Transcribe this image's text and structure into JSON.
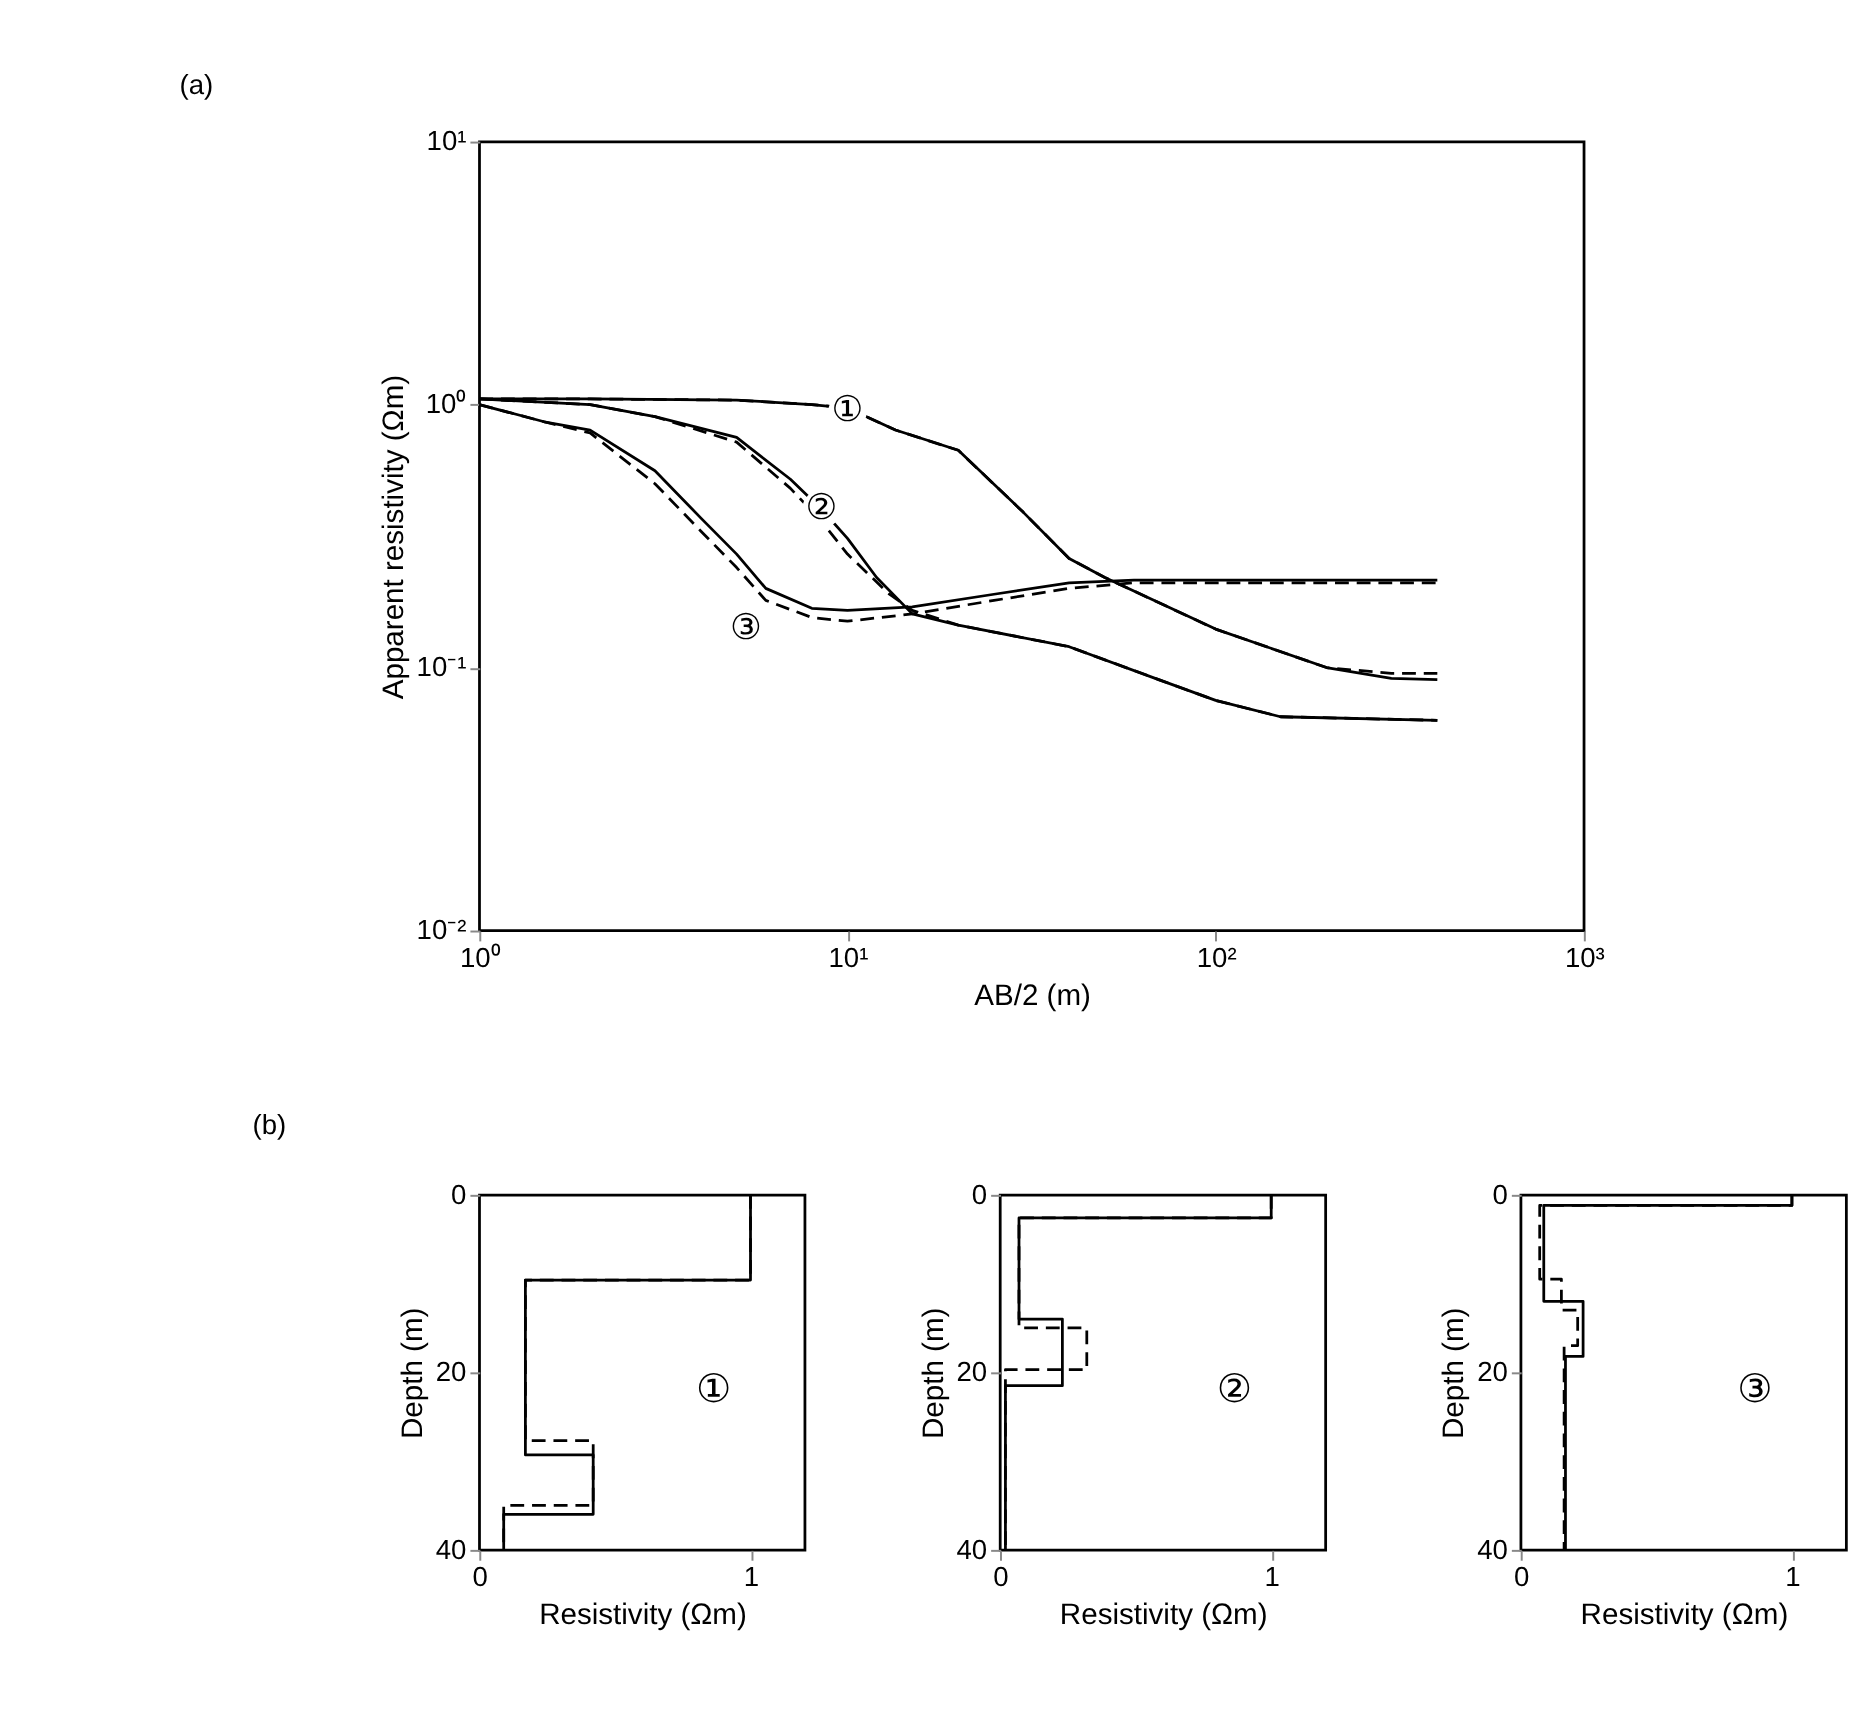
{
  "chart_data": [
    {
      "type": "line",
      "xlabel": "AB/2 (m)",
      "ylabel": "Apparent resistivity (Ωm)",
      "log": "xy",
      "grid": false,
      "xlim": [
        1,
        1000
      ],
      "ylim": [
        0.01,
        10
      ],
      "xticks": [
        {
          "value": 1,
          "label": "10⁰"
        },
        {
          "value": 10,
          "label": "10¹"
        },
        {
          "value": 100,
          "label": "10²"
        },
        {
          "value": 1000,
          "label": "10³"
        }
      ],
      "yticks": [
        {
          "value": 0.01,
          "label": "10⁻²"
        },
        {
          "value": 0.1,
          "label": "10⁻¹"
        },
        {
          "value": 1,
          "label": "10⁰"
        },
        {
          "value": 10,
          "label": "10¹"
        }
      ],
      "series": [
        {
          "color": "#000000",
          "line_style": "solid",
          "x": [
            1,
            2,
            5,
            8,
            10,
            13.5,
            20,
            30,
            40,
            50,
            100,
            200,
            300,
            400
          ],
          "values": [
            1.05,
            1.05,
            1.04,
            1.0,
            0.97,
            0.8,
            0.67,
            0.39,
            0.26,
            0.22,
            0.14,
            0.1,
            0.091,
            0.09
          ]
        },
        {
          "color": "#000000",
          "line_style": "dashed",
          "x": [
            1,
            2,
            5,
            8,
            10,
            13.5,
            20,
            30,
            40,
            50,
            100,
            200,
            300,
            400
          ],
          "values": [
            1.05,
            1.05,
            1.04,
            1.0,
            0.97,
            0.8,
            0.67,
            0.39,
            0.26,
            0.22,
            0.14,
            0.1,
            0.095,
            0.095
          ]
        },
        {
          "color": "#000000",
          "line_style": "solid",
          "x": [
            1,
            2,
            3,
            5,
            7,
            8.5,
            10,
            12,
            15,
            20,
            40,
            70,
            100,
            150,
            400
          ],
          "values": [
            1.05,
            1.0,
            0.9,
            0.75,
            0.52,
            0.4,
            0.31,
            0.22,
            0.16,
            0.145,
            0.12,
            0.09,
            0.075,
            0.065,
            0.063
          ]
        },
        {
          "color": "#000000",
          "line_style": "dashed",
          "x": [
            1,
            2,
            3,
            5,
            7,
            8.5,
            10,
            13,
            15,
            20,
            40,
            70,
            100,
            150,
            400
          ],
          "values": [
            1.05,
            1.0,
            0.9,
            0.72,
            0.48,
            0.36,
            0.27,
            0.19,
            0.165,
            0.145,
            0.12,
            0.09,
            0.075,
            0.065,
            0.063
          ]
        },
        {
          "color": "#000000",
          "line_style": "solid",
          "x": [
            1,
            1.5,
            2,
            3,
            4,
            5,
            6,
            8,
            10,
            15,
            25,
            40,
            60,
            400
          ],
          "values": [
            1.0,
            0.86,
            0.8,
            0.56,
            0.37,
            0.27,
            0.2,
            0.168,
            0.165,
            0.17,
            0.19,
            0.21,
            0.215,
            0.215
          ]
        },
        {
          "color": "#000000",
          "line_style": "dashed",
          "x": [
            1,
            1.5,
            2,
            3,
            4,
            5,
            6,
            8,
            10,
            15,
            25,
            40,
            60,
            400
          ],
          "values": [
            1.0,
            0.86,
            0.78,
            0.5,
            0.33,
            0.24,
            0.18,
            0.155,
            0.15,
            0.16,
            0.18,
            0.2,
            0.21,
            0.21
          ]
        }
      ],
      "annotations": [
        "(a)",
        {
          "text": "①",
          "x": 10,
          "y": 0.94
        },
        {
          "text": "②",
          "x": 8.5,
          "y": 0.4
        },
        {
          "text": "③",
          "x": 5.3,
          "y": 0.14
        }
      ]
    },
    {
      "type": "line",
      "xlabel": "Resistivity (Ωm)",
      "ylabel": "Depth (m)",
      "grid": false,
      "xlim": [
        0,
        1.2
      ],
      "ylim": [
        40,
        0
      ],
      "xticks": [
        0,
        1
      ],
      "yticks": [
        0,
        20,
        40
      ],
      "series": [
        {
          "color": "#000000",
          "line_style": "solid",
          "x": [
            1,
            1,
            0.17,
            0.17,
            0.42,
            0.42,
            0.09,
            0.09
          ],
          "values": [
            0,
            9.6,
            9.6,
            29.3,
            29.3,
            36,
            36,
            40
          ]
        },
        {
          "color": "#000000",
          "line_style": "dashed",
          "x": [
            1,
            1,
            0.17,
            0.17,
            0.42,
            0.42,
            0.09,
            0.09
          ],
          "values": [
            0,
            9.6,
            9.6,
            27.7,
            27.7,
            35,
            35,
            40
          ]
        }
      ],
      "annotations": [
        "(b)",
        "①"
      ]
    },
    {
      "type": "line",
      "xlabel": "Resistivity (Ωm)",
      "ylabel": "Depth (m)",
      "grid": false,
      "xlim": [
        0,
        1.2
      ],
      "ylim": [
        40,
        0
      ],
      "xticks": [
        0,
        1
      ],
      "yticks": [
        0,
        20,
        40
      ],
      "series": [
        {
          "color": "#000000",
          "line_style": "solid",
          "x": [
            1,
            1,
            0.07,
            0.07,
            0.23,
            0.23,
            0.02,
            0.02
          ],
          "values": [
            0,
            2.6,
            2.6,
            14,
            14,
            21.5,
            21.5,
            40
          ]
        },
        {
          "color": "#000000",
          "line_style": "dashed",
          "x": [
            1,
            1,
            0.07,
            0.07,
            0.32,
            0.32,
            0.02,
            0.02
          ],
          "values": [
            0,
            2.6,
            2.6,
            15,
            15,
            19.7,
            19.7,
            40
          ]
        }
      ],
      "annotations": [
        "②"
      ]
    },
    {
      "type": "line",
      "xlabel": "Resistivity (Ωm)",
      "ylabel": "Depth (m)",
      "grid": false,
      "xlim": [
        0,
        1.2
      ],
      "ylim": [
        40,
        0
      ],
      "xticks": [
        0,
        1
      ],
      "yticks": [
        0,
        20,
        40
      ],
      "series": [
        {
          "color": "#000000",
          "line_style": "solid",
          "x": [
            1,
            1,
            0.085,
            0.085,
            0.23,
            0.23,
            0.165,
            0.165
          ],
          "values": [
            0,
            1.2,
            1.2,
            12,
            12,
            18.2,
            18.2,
            40
          ]
        },
        {
          "color": "#000000",
          "line_style": "dashed",
          "x": [
            1,
            1,
            0.07,
            0.07,
            0.15,
            0.15,
            0.21,
            0.21,
            0.16,
            0.16
          ],
          "values": [
            0,
            1.2,
            1.2,
            9.5,
            9.5,
            13,
            13,
            17,
            17,
            40
          ]
        }
      ],
      "annotations": [
        "③"
      ]
    }
  ]
}
